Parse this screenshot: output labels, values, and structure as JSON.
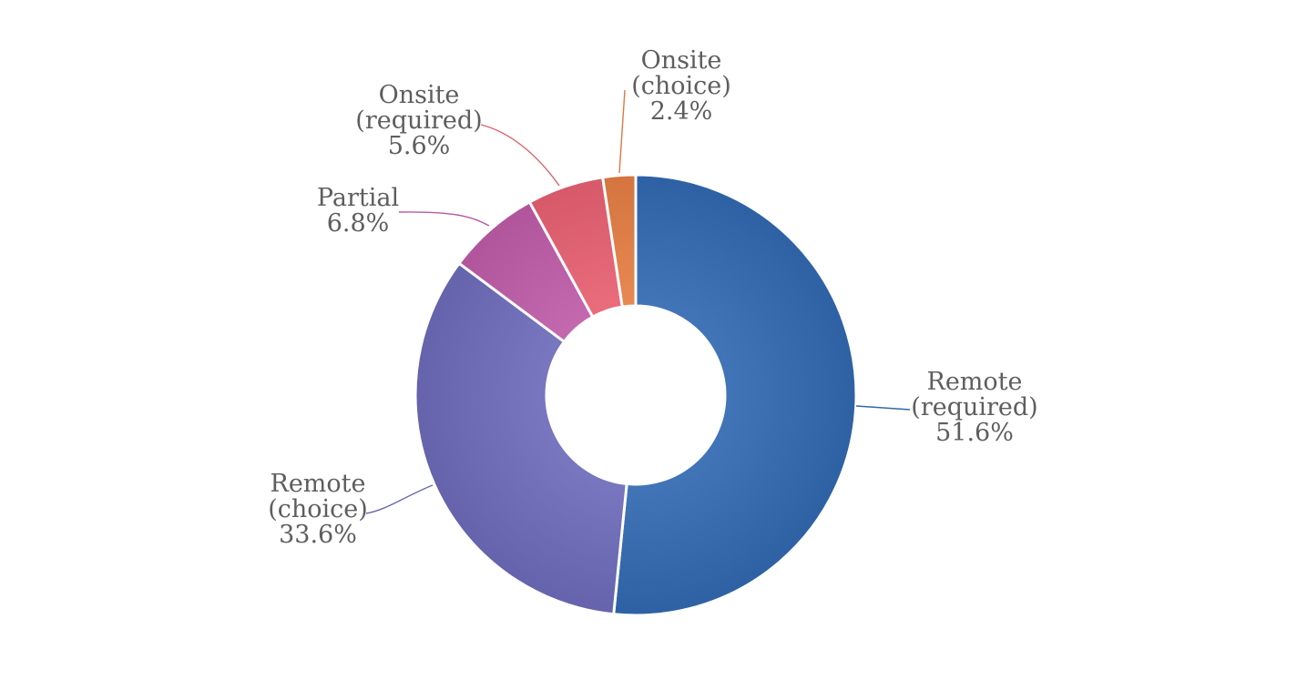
{
  "chart_data": {
    "type": "pie",
    "donut": true,
    "title": "",
    "legend": "none",
    "slices": [
      {
        "lines": [
          "Remote",
          "(required)"
        ],
        "value": 51.6,
        "label": "51.6%",
        "color": "#3467aa"
      },
      {
        "lines": [
          "Remote",
          "(choice)"
        ],
        "value": 33.6,
        "label": "33.6%",
        "color": "#6b69b1"
      },
      {
        "lines": [
          "Partial"
        ],
        "value": 6.8,
        "label": "6.8%",
        "color": "#b65ba2"
      },
      {
        "lines": [
          "Onsite",
          "(required)"
        ],
        "value": 5.6,
        "label": "5.6%",
        "color": "#dc5f6f"
      },
      {
        "lines": [
          "Onsite",
          "(choice)"
        ],
        "value": 2.4,
        "label": "2.4%",
        "color": "#da7a45"
      }
    ]
  }
}
